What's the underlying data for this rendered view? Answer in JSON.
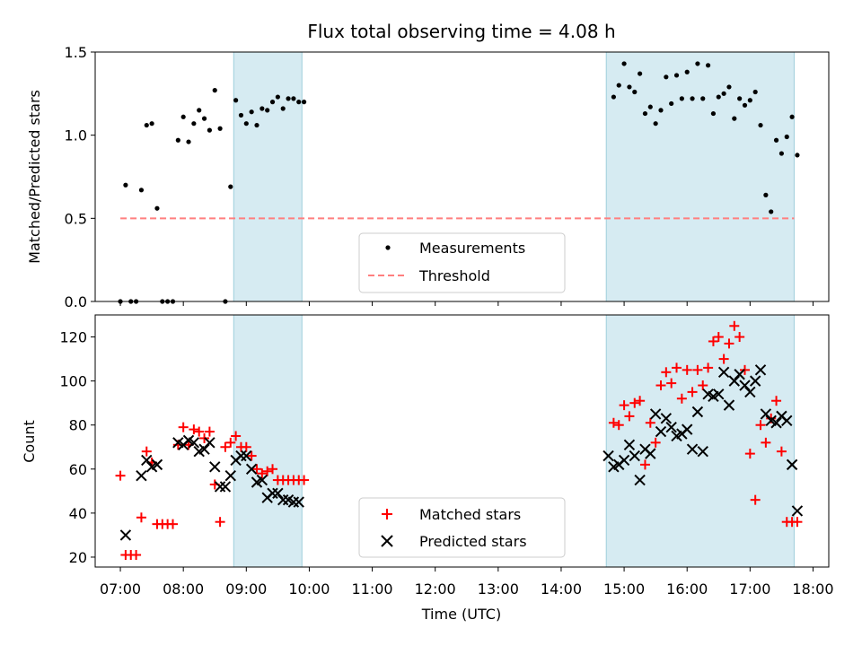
{
  "chart_data": [
    {
      "type": "scatter",
      "title": "Flux total observing time = 4.08 h",
      "ylabel": "Matched/Predicted stars",
      "ylim": [
        0,
        1.5
      ],
      "yticks": [
        "0.0",
        "0.5",
        "1.0",
        "1.5"
      ],
      "xlim_hours": [
        6.6,
        18.25
      ],
      "shaded_intervals": [
        [
          "08:48",
          "09:53"
        ],
        [
          "14:43",
          "17:42"
        ]
      ],
      "legend": {
        "placement": "lower-center",
        "entries": [
          "Measurements",
          "Threshold"
        ]
      },
      "threshold": {
        "name": "Threshold",
        "y": 0.5,
        "x_range": [
          "07:00",
          "17:42"
        ],
        "color": "#ff7f7f"
      },
      "series": [
        {
          "name": "Measurements",
          "color": "#000000",
          "x": [
            "07:00",
            "07:05",
            "07:10",
            "07:15",
            "07:20",
            "07:25",
            "07:30",
            "07:35",
            "07:40",
            "07:45",
            "07:50",
            "07:55",
            "08:00",
            "08:05",
            "08:10",
            "08:15",
            "08:20",
            "08:25",
            "08:30",
            "08:35",
            "08:40",
            "08:45",
            "08:50",
            "08:55",
            "09:00",
            "09:05",
            "09:10",
            "09:15",
            "09:20",
            "09:25",
            "09:30",
            "09:35",
            "09:40",
            "09:45",
            "09:50",
            "09:55",
            "14:50",
            "14:55",
            "15:00",
            "15:05",
            "15:10",
            "15:15",
            "15:20",
            "15:25",
            "15:30",
            "15:35",
            "15:40",
            "15:45",
            "15:50",
            "15:55",
            "16:00",
            "16:05",
            "16:10",
            "16:15",
            "16:20",
            "16:25",
            "16:30",
            "16:35",
            "16:40",
            "16:45",
            "16:50",
            "16:55",
            "17:00",
            "17:05",
            "17:10",
            "17:15",
            "17:20",
            "17:25",
            "17:30",
            "17:35",
            "17:40",
            "17:45"
          ],
          "y": [
            0.0,
            0.7,
            0.0,
            0.0,
            0.67,
            1.06,
            1.07,
            0.56,
            0.0,
            0.0,
            0.0,
            0.97,
            1.11,
            0.96,
            1.07,
            1.15,
            1.1,
            1.03,
            1.27,
            1.04,
            0.0,
            0.69,
            1.21,
            1.12,
            1.07,
            1.14,
            1.06,
            1.16,
            1.15,
            1.2,
            1.23,
            1.16,
            1.22,
            1.22,
            1.2,
            1.2,
            1.23,
            1.3,
            1.43,
            1.29,
            1.26,
            1.37,
            1.13,
            1.17,
            1.07,
            1.15,
            1.35,
            1.19,
            1.36,
            1.22,
            1.38,
            1.22,
            1.43,
            1.22,
            1.42,
            1.13,
            1.23,
            1.25,
            1.29,
            1.1,
            1.22,
            1.18,
            1.21,
            1.26,
            1.06,
            0.64,
            0.54,
            0.97,
            0.89,
            0.99,
            1.11,
            0.88
          ]
        }
      ]
    },
    {
      "type": "scatter",
      "xlabel": "Time (UTC)",
      "ylabel": "Count",
      "ylim": [
        15.5,
        130
      ],
      "yticks": [
        "20",
        "40",
        "60",
        "80",
        "100",
        "120"
      ],
      "xticks": [
        "07:00",
        "08:00",
        "09:00",
        "10:00",
        "11:00",
        "12:00",
        "13:00",
        "14:00",
        "15:00",
        "16:00",
        "17:00",
        "18:00"
      ],
      "xlim_hours": [
        6.6,
        18.25
      ],
      "shaded_intervals": [
        [
          "08:48",
          "09:53"
        ],
        [
          "14:43",
          "17:42"
        ]
      ],
      "legend": {
        "placement": "lower-center",
        "entries": [
          "Matched stars",
          "Predicted stars"
        ]
      },
      "series": [
        {
          "name": "Matched stars",
          "marker": "plus",
          "color": "#ff0000",
          "x": [
            "07:00",
            "07:05",
            "07:10",
            "07:15",
            "07:20",
            "07:25",
            "07:30",
            "07:35",
            "07:40",
            "07:45",
            "07:50",
            "07:55",
            "08:00",
            "08:05",
            "08:10",
            "08:15",
            "08:20",
            "08:25",
            "08:30",
            "08:35",
            "08:40",
            "08:45",
            "08:50",
            "08:55",
            "09:00",
            "09:05",
            "09:10",
            "09:15",
            "09:20",
            "09:25",
            "09:30",
            "09:35",
            "09:40",
            "09:45",
            "09:50",
            "09:55",
            "14:50",
            "14:55",
            "15:00",
            "15:05",
            "15:10",
            "15:15",
            "15:20",
            "15:25",
            "15:30",
            "15:35",
            "15:40",
            "15:45",
            "15:50",
            "15:55",
            "16:00",
            "16:05",
            "16:10",
            "16:15",
            "16:20",
            "16:25",
            "16:30",
            "16:35",
            "16:40",
            "16:45",
            "16:50",
            "16:55",
            "17:00",
            "17:05",
            "17:10",
            "17:15",
            "17:20",
            "17:25",
            "17:30",
            "17:35",
            "17:40",
            "17:45"
          ],
          "y": [
            57,
            21,
            21,
            21,
            38,
            68,
            63,
            35,
            35,
            35,
            35,
            71,
            79,
            71,
            78,
            77,
            74,
            77,
            53,
            36,
            70,
            72,
            75,
            70,
            70,
            66,
            60,
            58,
            59,
            60,
            55,
            55,
            55,
            55,
            55,
            55,
            81,
            80,
            89,
            84,
            90,
            91,
            62,
            81,
            72,
            98,
            104,
            99,
            106,
            92,
            105,
            95,
            105,
            98,
            106,
            118,
            120,
            110,
            117,
            125,
            120,
            105,
            67,
            46,
            80,
            72,
            83,
            91,
            68,
            36,
            36,
            36
          ],
          "visible_points_note": ""
        },
        {
          "name": "Predicted stars",
          "marker": "x",
          "color": "#000000",
          "x": [
            "07:05",
            "07:20",
            "07:25",
            "07:30",
            "07:35",
            "07:55",
            "08:00",
            "08:05",
            "08:10",
            "08:15",
            "08:20",
            "08:25",
            "08:30",
            "08:35",
            "08:40",
            "08:45",
            "08:50",
            "08:55",
            "09:00",
            "09:05",
            "09:10",
            "09:15",
            "09:20",
            "09:25",
            "09:30",
            "09:35",
            "09:40",
            "09:45",
            "09:50",
            "14:45",
            "14:50",
            "14:55",
            "15:00",
            "15:05",
            "15:10",
            "15:15",
            "15:20",
            "15:25",
            "15:30",
            "15:35",
            "15:40",
            "15:45",
            "15:50",
            "15:55",
            "16:00",
            "16:05",
            "16:10",
            "16:15",
            "16:20",
            "16:25",
            "16:30",
            "16:35",
            "16:40",
            "16:45",
            "16:50",
            "16:55",
            "17:00",
            "17:05",
            "17:10",
            "17:15",
            "17:20",
            "17:25",
            "17:30",
            "17:35",
            "17:40",
            "17:45"
          ],
          "y": [
            30,
            57,
            64,
            61,
            62,
            72,
            71,
            73,
            72,
            68,
            69,
            72,
            61,
            52,
            52,
            57,
            64,
            66,
            66,
            60,
            54,
            55,
            47,
            49,
            49,
            46,
            46,
            45,
            45,
            66,
            61,
            62,
            64,
            71,
            66,
            55,
            69,
            67,
            85,
            77,
            83,
            79,
            75,
            76,
            78,
            69,
            86,
            68,
            94,
            93,
            94,
            104,
            89,
            100,
            103,
            98,
            95,
            100,
            105,
            85,
            82,
            81,
            84,
            82,
            62,
            41
          ],
          "visible_points_note": ""
        }
      ]
    }
  ]
}
